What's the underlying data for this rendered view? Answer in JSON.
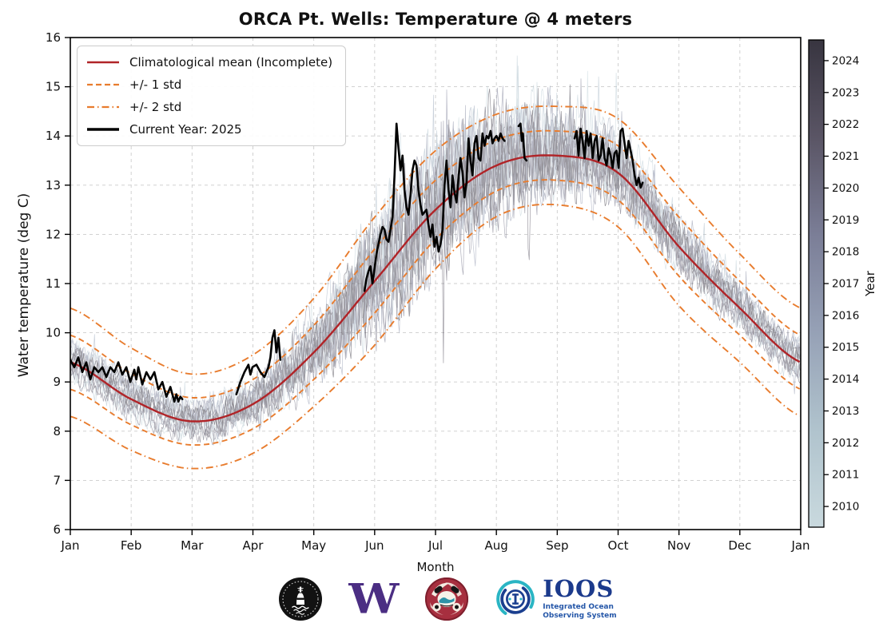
{
  "title": "ORCA Pt. Wells: Temperature @ 4 meters",
  "axes": {
    "xlabel": "Month",
    "ylabel": "Water temperature (deg C)",
    "x_ticks": [
      "Jan",
      "Feb",
      "Mar",
      "Apr",
      "May",
      "Jun",
      "Jul",
      "Aug",
      "Sep",
      "Oct",
      "Nov",
      "Dec",
      "Jan"
    ],
    "y_ticks": [
      6,
      7,
      8,
      9,
      10,
      11,
      12,
      13,
      14,
      15,
      16
    ],
    "ylim": [
      6,
      16
    ],
    "grid": true
  },
  "legend": {
    "items": [
      {
        "label": "Climatological mean (Incomplete)",
        "style": "solid-red"
      },
      {
        "label": "+/- 1 std",
        "style": "dashed-orange"
      },
      {
        "label": "+/- 2 std",
        "style": "dashdot-orange"
      },
      {
        "label": "Current Year: 2025",
        "style": "solid-black"
      }
    ]
  },
  "colorbar": {
    "label": "Year",
    "ticks": [
      2010,
      2011,
      2012,
      2013,
      2014,
      2015,
      2016,
      2017,
      2018,
      2019,
      2020,
      2021,
      2022,
      2023,
      2024
    ],
    "vmin": 2009.35,
    "vmax": 2024.65,
    "colors_bottom_to_top": [
      "#c9d9de",
      "#b0c3cd",
      "#96a1b6",
      "#7b7e97",
      "#5a5565",
      "#383540"
    ]
  },
  "colors": {
    "mean": "#b02428",
    "std": "#e87c2e",
    "current_year": "#000000",
    "grid": "#cccccc",
    "spine": "#000000"
  },
  "chart_data": {
    "type": "line",
    "title": "ORCA Pt. Wells: Temperature @ 4 meters",
    "xlabel": "Month",
    "ylabel": "Water temperature (deg C)",
    "ylim": [
      6,
      16
    ],
    "x_range_days": [
      0,
      365
    ],
    "legend_position": "upper left",
    "climatology": {
      "month_boundary_days": [
        0,
        30.42,
        60.83,
        91.25,
        121.67,
        152.08,
        182.5,
        212.92,
        243.33,
        273.75,
        304.17,
        334.58,
        365
      ],
      "mean": [
        9.4,
        8.65,
        8.2,
        8.55,
        9.6,
        11.05,
        12.5,
        13.4,
        13.6,
        13.25,
        11.75,
        10.5,
        9.4
      ],
      "std": [
        0.55,
        0.52,
        0.48,
        0.5,
        0.55,
        0.65,
        0.6,
        0.52,
        0.5,
        0.55,
        0.6,
        0.55,
        0.55
      ]
    },
    "background_years": {
      "start": 2009,
      "end": 2024,
      "description": "thin noisy daily traces, one per year, colored light (old) to dark (recent)"
    },
    "current_year": {
      "name": "Current Year: 2025",
      "segments": [
        [
          [
            0,
            9.45
          ],
          [
            2,
            9.3
          ],
          [
            4,
            9.5
          ],
          [
            6,
            9.2
          ],
          [
            8,
            9.4
          ],
          [
            10,
            9.05
          ],
          [
            12,
            9.3
          ],
          [
            14,
            9.2
          ],
          [
            16,
            9.3
          ],
          [
            18,
            9.1
          ],
          [
            20,
            9.3
          ],
          [
            22,
            9.2
          ],
          [
            24,
            9.4
          ],
          [
            26,
            9.15
          ],
          [
            28,
            9.3
          ],
          [
            30,
            9.0
          ],
          [
            32,
            9.25
          ],
          [
            33,
            9.05
          ],
          [
            34,
            9.3
          ],
          [
            36,
            8.95
          ],
          [
            38,
            9.2
          ],
          [
            40,
            9.05
          ],
          [
            42,
            9.2
          ],
          [
            44,
            8.85
          ],
          [
            46,
            9.0
          ],
          [
            48,
            8.7
          ],
          [
            50,
            8.9
          ],
          [
            52,
            8.6
          ],
          [
            53,
            8.75
          ],
          [
            54,
            8.6
          ],
          [
            55,
            8.7
          ],
          [
            56,
            8.65
          ]
        ],
        [
          [
            83,
            8.75
          ],
          [
            85,
            9.0
          ],
          [
            87,
            9.2
          ],
          [
            89,
            9.35
          ],
          [
            90,
            9.15
          ],
          [
            91,
            9.3
          ],
          [
            93,
            9.35
          ],
          [
            95,
            9.2
          ],
          [
            97,
            9.1
          ],
          [
            99,
            9.3
          ],
          [
            100,
            9.5
          ],
          [
            101,
            9.9
          ],
          [
            102,
            10.05
          ],
          [
            103,
            9.6
          ],
          [
            104,
            9.9
          ],
          [
            105,
            9.45
          ]
        ],
        [
          [
            147,
            10.85
          ],
          [
            148,
            11.1
          ],
          [
            149,
            11.25
          ],
          [
            150,
            11.35
          ],
          [
            151,
            11.0
          ],
          [
            152,
            11.3
          ],
          [
            153,
            11.6
          ],
          [
            154,
            11.8
          ],
          [
            155,
            12.0
          ],
          [
            156,
            12.15
          ],
          [
            157,
            12.1
          ],
          [
            158,
            11.9
          ],
          [
            159,
            11.85
          ],
          [
            160,
            12.1
          ],
          [
            161,
            12.35
          ],
          [
            162,
            13.2
          ],
          [
            163,
            14.25
          ],
          [
            164,
            13.75
          ],
          [
            165,
            13.3
          ],
          [
            166,
            13.6
          ],
          [
            167,
            12.9
          ],
          [
            168,
            12.55
          ],
          [
            169,
            12.4
          ],
          [
            170,
            12.8
          ],
          [
            171,
            13.3
          ],
          [
            172,
            13.5
          ],
          [
            173,
            13.4
          ],
          [
            174,
            12.9
          ],
          [
            175,
            12.6
          ],
          [
            176,
            12.4
          ],
          [
            177,
            12.45
          ],
          [
            178,
            12.5
          ],
          [
            179,
            12.2
          ],
          [
            180,
            11.95
          ],
          [
            181,
            12.2
          ],
          [
            182,
            11.75
          ],
          [
            183,
            11.95
          ],
          [
            184,
            11.65
          ],
          [
            185,
            11.8
          ],
          [
            186,
            12.1
          ],
          [
            187,
            13.0
          ],
          [
            188,
            13.5
          ],
          [
            189,
            12.9
          ],
          [
            190,
            12.55
          ],
          [
            191,
            13.2
          ],
          [
            192,
            12.85
          ],
          [
            193,
            12.65
          ],
          [
            194,
            13.15
          ],
          [
            195,
            13.55
          ],
          [
            196,
            13.25
          ],
          [
            197,
            12.75
          ],
          [
            198,
            13.05
          ],
          [
            199,
            13.95
          ],
          [
            200,
            13.5
          ],
          [
            201,
            13.2
          ],
          [
            202,
            13.85
          ],
          [
            203,
            14.0
          ],
          [
            204,
            13.55
          ],
          [
            205,
            13.5
          ],
          [
            206,
            14.05
          ],
          [
            207,
            13.8
          ],
          [
            208,
            14.0
          ],
          [
            209,
            13.95
          ],
          [
            210,
            14.1
          ],
          [
            211,
            13.85
          ],
          [
            212,
            13.95
          ],
          [
            213,
            14.0
          ],
          [
            214,
            13.9
          ],
          [
            215,
            14.05
          ],
          [
            216,
            13.95
          ],
          [
            217,
            13.9
          ]
        ],
        [
          [
            224,
            14.2
          ],
          [
            225,
            14.25
          ],
          [
            225.6,
            13.9
          ],
          [
            226.2,
            14.05
          ],
          [
            227,
            13.55
          ],
          [
            228,
            13.5
          ]
        ],
        [
          [
            252,
            13.95
          ],
          [
            253,
            14.1
          ],
          [
            254,
            13.6
          ],
          [
            255,
            14.15
          ],
          [
            256,
            13.9
          ],
          [
            257,
            13.55
          ],
          [
            258,
            14.1
          ],
          [
            259,
            13.8
          ],
          [
            260,
            14.05
          ],
          [
            261,
            13.55
          ],
          [
            262,
            13.9
          ],
          [
            263,
            14.0
          ],
          [
            264,
            13.5
          ],
          [
            265,
            13.6
          ],
          [
            266,
            13.95
          ],
          [
            267,
            13.55
          ],
          [
            268,
            13.4
          ],
          [
            269,
            13.75
          ],
          [
            270,
            13.6
          ],
          [
            271,
            13.35
          ],
          [
            272,
            13.65
          ],
          [
            273,
            13.7
          ],
          [
            274,
            13.35
          ],
          [
            275,
            14.1
          ],
          [
            276,
            14.15
          ],
          [
            277,
            13.85
          ],
          [
            278,
            13.55
          ],
          [
            279,
            13.9
          ],
          [
            280,
            13.7
          ],
          [
            281,
            13.5
          ],
          [
            282,
            13.2
          ],
          [
            283,
            13.0
          ],
          [
            284,
            13.15
          ],
          [
            285,
            12.95
          ],
          [
            286,
            13.05
          ]
        ]
      ]
    }
  },
  "footer": {
    "uw_letter": "W",
    "ioos": {
      "acronym": "IOOS",
      "subtitle_line1": "Integrated  Ocean",
      "subtitle_line2": "Observing System"
    }
  }
}
